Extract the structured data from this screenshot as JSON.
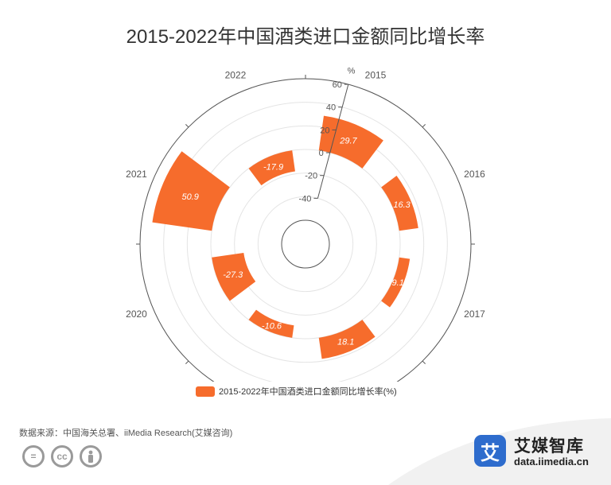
{
  "title": "2015-2022年中国酒类进口金额同比增长率",
  "chart_data": {
    "type": "polar-bar",
    "title": "2015-2022年中国酒类进口金额同比增长率",
    "categories": [
      "2015",
      "2016",
      "2017",
      "2018",
      "2019",
      "2020",
      "2021",
      "2022"
    ],
    "series": [
      {
        "name": "2015-2022年中国酒类进口金额同比增长率(%)",
        "values": [
          29.7,
          16.3,
          9.1,
          18.1,
          -10.6,
          -27.3,
          50.9,
          -17.9
        ],
        "color": "#f66c2c"
      }
    ],
    "radial_axis": {
      "label": "%",
      "min": -60,
      "max": 60,
      "ticks": [
        -40,
        -20,
        0,
        20,
        40,
        60
      ]
    },
    "grid": true,
    "legend_position": "bottom"
  },
  "legend": {
    "label": "2015-2022年中国酒类进口金额同比增长率(%)",
    "color": "#f66c2c"
  },
  "source": "数据来源：中国海关总署、iiMedia Research(艾媒咨询)",
  "license_icons": [
    "equals-icon",
    "cc-icon",
    "person-icon"
  ],
  "brand": {
    "logo_char": "艾",
    "name": "艾媒智库",
    "url": "data.iimedia.cn"
  }
}
